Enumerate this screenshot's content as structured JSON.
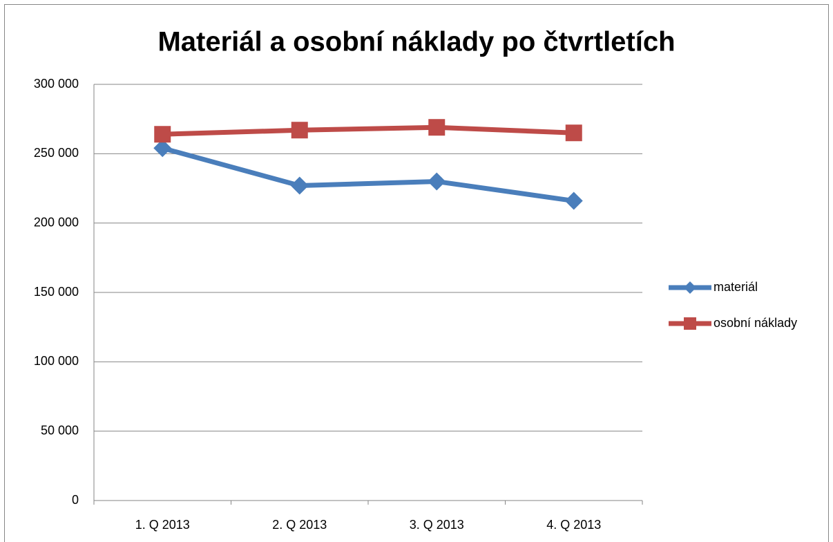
{
  "chart_data": {
    "type": "line",
    "title": "Materiál a osobní náklady po čtvrtletích",
    "categories": [
      "1. Q 2013",
      "2. Q 2013",
      "3. Q 2013",
      "4. Q 2013"
    ],
    "series": [
      {
        "name": "materiál",
        "color": "#4a7ebb",
        "marker": "diamond",
        "values": [
          254000,
          227000,
          230000,
          216000
        ]
      },
      {
        "name": "osobní náklady",
        "color": "#be4b48",
        "marker": "square",
        "values": [
          264000,
          267000,
          269000,
          265000
        ]
      }
    ],
    "ylim": [
      0,
      300000
    ],
    "yticks": [
      0,
      {
        "value": 50000,
        "label": "50 000"
      },
      {
        "value": 100000,
        "label": "100 000"
      },
      {
        "value": 150000,
        "label": "150 000"
      },
      {
        "value": 200000,
        "label": "200 000"
      },
      {
        "value": 250000,
        "label": "250 000"
      },
      {
        "value": 300000,
        "label": "300 000"
      }
    ],
    "grid": true,
    "legend": "right"
  }
}
